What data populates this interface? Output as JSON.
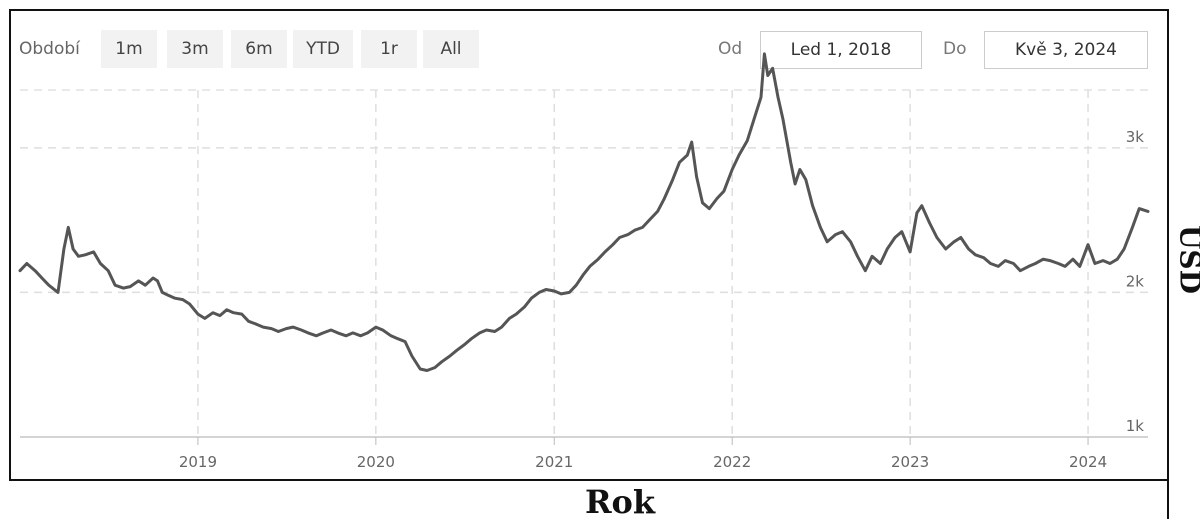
{
  "toolbar": {
    "period_label": "Období",
    "ranges": [
      "1m",
      "3m",
      "6m",
      "YTD",
      "1r",
      "All"
    ],
    "from_label": "Od",
    "from_value": "Led 1, 2018",
    "to_label": "Do",
    "to_value": "Kvě 3, 2024"
  },
  "chart_data": {
    "type": "line",
    "xlabel": "Rok",
    "ylabel": "USD",
    "x_start": "2018-01-01",
    "x_end": "2024-05-03",
    "xlim": [
      "2018-01-01",
      "2024-05-03"
    ],
    "ylim": [
      1000,
      3400
    ],
    "x_ticks": [
      "2019",
      "2020",
      "2021",
      "2022",
      "2023",
      "2024"
    ],
    "y_ticks": [
      {
        "value": 1000,
        "label": "1k"
      },
      {
        "value": 2000,
        "label": "2k"
      },
      {
        "value": 3000,
        "label": "3k"
      }
    ],
    "grid": true,
    "line_color": "#555555",
    "series": [
      {
        "points": [
          [
            "2018-01-01",
            2150
          ],
          [
            "2018-01-15",
            2200
          ],
          [
            "2018-02-01",
            2150
          ],
          [
            "2018-02-15",
            2100
          ],
          [
            "2018-03-01",
            2050
          ],
          [
            "2018-03-20",
            2000
          ],
          [
            "2018-04-01",
            2300
          ],
          [
            "2018-04-10",
            2450
          ],
          [
            "2018-04-20",
            2300
          ],
          [
            "2018-05-01",
            2250
          ],
          [
            "2018-05-15",
            2260
          ],
          [
            "2018-06-01",
            2280
          ],
          [
            "2018-06-15",
            2200
          ],
          [
            "2018-07-01",
            2150
          ],
          [
            "2018-07-15",
            2050
          ],
          [
            "2018-08-01",
            2030
          ],
          [
            "2018-08-15",
            2040
          ],
          [
            "2018-09-01",
            2080
          ],
          [
            "2018-09-15",
            2050
          ],
          [
            "2018-10-01",
            2100
          ],
          [
            "2018-10-10",
            2080
          ],
          [
            "2018-10-20",
            2000
          ],
          [
            "2018-11-01",
            1980
          ],
          [
            "2018-11-15",
            1960
          ],
          [
            "2018-12-01",
            1950
          ],
          [
            "2018-12-15",
            1920
          ],
          [
            "2019-01-01",
            1850
          ],
          [
            "2019-01-15",
            1820
          ],
          [
            "2019-02-01",
            1860
          ],
          [
            "2019-02-15",
            1840
          ],
          [
            "2019-03-01",
            1880
          ],
          [
            "2019-03-15",
            1860
          ],
          [
            "2019-04-01",
            1850
          ],
          [
            "2019-04-15",
            1800
          ],
          [
            "2019-05-01",
            1780
          ],
          [
            "2019-05-15",
            1760
          ],
          [
            "2019-06-01",
            1750
          ],
          [
            "2019-06-15",
            1730
          ],
          [
            "2019-07-01",
            1750
          ],
          [
            "2019-07-15",
            1760
          ],
          [
            "2019-08-01",
            1740
          ],
          [
            "2019-08-15",
            1720
          ],
          [
            "2019-09-01",
            1700
          ],
          [
            "2019-09-15",
            1720
          ],
          [
            "2019-10-01",
            1740
          ],
          [
            "2019-10-15",
            1720
          ],
          [
            "2019-11-01",
            1700
          ],
          [
            "2019-11-15",
            1720
          ],
          [
            "2019-12-01",
            1700
          ],
          [
            "2019-12-15",
            1720
          ],
          [
            "2020-01-01",
            1760
          ],
          [
            "2020-01-15",
            1740
          ],
          [
            "2020-02-01",
            1700
          ],
          [
            "2020-02-15",
            1680
          ],
          [
            "2020-03-01",
            1660
          ],
          [
            "2020-03-15",
            1560
          ],
          [
            "2020-04-01",
            1470
          ],
          [
            "2020-04-15",
            1460
          ],
          [
            "2020-05-01",
            1480
          ],
          [
            "2020-05-15",
            1520
          ],
          [
            "2020-06-01",
            1560
          ],
          [
            "2020-06-15",
            1600
          ],
          [
            "2020-07-01",
            1640
          ],
          [
            "2020-07-15",
            1680
          ],
          [
            "2020-08-01",
            1720
          ],
          [
            "2020-08-15",
            1740
          ],
          [
            "2020-09-01",
            1730
          ],
          [
            "2020-09-15",
            1760
          ],
          [
            "2020-10-01",
            1820
          ],
          [
            "2020-10-15",
            1850
          ],
          [
            "2020-11-01",
            1900
          ],
          [
            "2020-11-15",
            1960
          ],
          [
            "2020-12-01",
            2000
          ],
          [
            "2020-12-15",
            2020
          ],
          [
            "2021-01-01",
            2010
          ],
          [
            "2021-01-15",
            1990
          ],
          [
            "2021-02-01",
            2000
          ],
          [
            "2021-02-15",
            2050
          ],
          [
            "2021-03-01",
            2120
          ],
          [
            "2021-03-15",
            2180
          ],
          [
            "2021-04-01",
            2230
          ],
          [
            "2021-04-15",
            2280
          ],
          [
            "2021-05-01",
            2330
          ],
          [
            "2021-05-15",
            2380
          ],
          [
            "2021-06-01",
            2400
          ],
          [
            "2021-06-15",
            2430
          ],
          [
            "2021-07-01",
            2450
          ],
          [
            "2021-07-15",
            2500
          ],
          [
            "2021-08-01",
            2560
          ],
          [
            "2021-08-15",
            2650
          ],
          [
            "2021-09-01",
            2780
          ],
          [
            "2021-09-15",
            2900
          ],
          [
            "2021-10-01",
            2950
          ],
          [
            "2021-10-10",
            3040
          ],
          [
            "2021-10-20",
            2800
          ],
          [
            "2021-11-01",
            2620
          ],
          [
            "2021-11-15",
            2580
          ],
          [
            "2021-12-01",
            2650
          ],
          [
            "2021-12-15",
            2700
          ],
          [
            "2022-01-01",
            2850
          ],
          [
            "2022-01-15",
            2950
          ],
          [
            "2022-02-01",
            3050
          ],
          [
            "2022-02-15",
            3200
          ],
          [
            "2022-03-01",
            3350
          ],
          [
            "2022-03-08",
            3650
          ],
          [
            "2022-03-15",
            3500
          ],
          [
            "2022-03-25",
            3550
          ],
          [
            "2022-04-05",
            3350
          ],
          [
            "2022-04-15",
            3200
          ],
          [
            "2022-05-01",
            2900
          ],
          [
            "2022-05-10",
            2750
          ],
          [
            "2022-05-20",
            2850
          ],
          [
            "2022-06-01",
            2780
          ],
          [
            "2022-06-15",
            2600
          ],
          [
            "2022-07-01",
            2450
          ],
          [
            "2022-07-15",
            2350
          ],
          [
            "2022-08-01",
            2400
          ],
          [
            "2022-08-15",
            2420
          ],
          [
            "2022-09-01",
            2350
          ],
          [
            "2022-09-15",
            2250
          ],
          [
            "2022-10-01",
            2150
          ],
          [
            "2022-10-15",
            2250
          ],
          [
            "2022-11-01",
            2200
          ],
          [
            "2022-11-15",
            2300
          ],
          [
            "2022-12-01",
            2380
          ],
          [
            "2022-12-15",
            2420
          ],
          [
            "2023-01-01",
            2280
          ],
          [
            "2023-01-15",
            2550
          ],
          [
            "2023-01-25",
            2600
          ],
          [
            "2023-02-10",
            2480
          ],
          [
            "2023-02-25",
            2380
          ],
          [
            "2023-03-15",
            2300
          ],
          [
            "2023-04-01",
            2350
          ],
          [
            "2023-04-15",
            2380
          ],
          [
            "2023-05-01",
            2300
          ],
          [
            "2023-05-15",
            2260
          ],
          [
            "2023-06-01",
            2240
          ],
          [
            "2023-06-15",
            2200
          ],
          [
            "2023-07-01",
            2180
          ],
          [
            "2023-07-15",
            2220
          ],
          [
            "2023-08-01",
            2200
          ],
          [
            "2023-08-15",
            2150
          ],
          [
            "2023-09-01",
            2180
          ],
          [
            "2023-09-15",
            2200
          ],
          [
            "2023-10-01",
            2230
          ],
          [
            "2023-10-15",
            2220
          ],
          [
            "2023-11-01",
            2200
          ],
          [
            "2023-11-15",
            2180
          ],
          [
            "2023-12-01",
            2230
          ],
          [
            "2023-12-15",
            2180
          ],
          [
            "2024-01-01",
            2330
          ],
          [
            "2024-01-15",
            2200
          ],
          [
            "2024-02-01",
            2220
          ],
          [
            "2024-02-15",
            2200
          ],
          [
            "2024-03-01",
            2230
          ],
          [
            "2024-03-15",
            2300
          ],
          [
            "2024-04-01",
            2450
          ],
          [
            "2024-04-15",
            2580
          ],
          [
            "2024-05-03",
            2560
          ]
        ]
      }
    ]
  }
}
